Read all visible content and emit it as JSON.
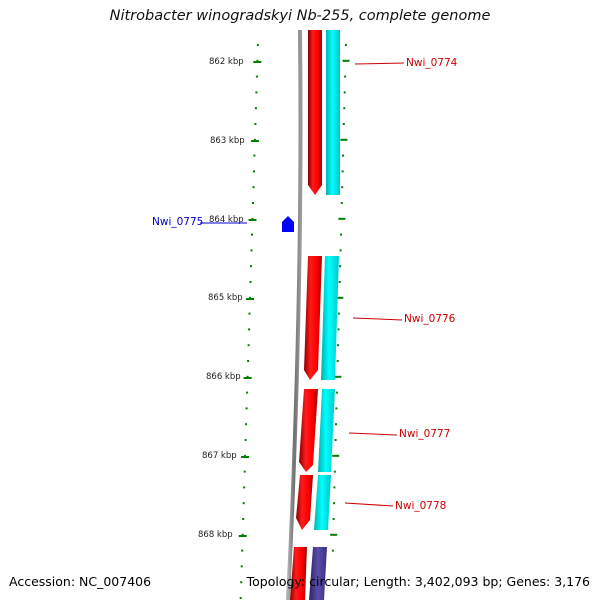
{
  "header": {
    "title": "Nitrobacter winogradskyi Nb-255, complete genome"
  },
  "footer": {
    "accession": "Accession: NC_007406",
    "summary": "Topology: circular; Length: 3,402,093 bp; Genes: 3,176"
  },
  "scale": {
    "ticks": [
      "862 kbp",
      "863 kbp",
      "864 kbp",
      "865 kbp",
      "866 kbp",
      "867 kbp",
      "868 kbp"
    ]
  },
  "genes": [
    {
      "id": "Nwi_0774",
      "strand": "forward",
      "color": "#cc0000"
    },
    {
      "id": "Nwi_0775",
      "strand": "reverse",
      "color": "#0000cc"
    },
    {
      "id": "Nwi_0776",
      "strand": "forward",
      "color": "#cc0000"
    },
    {
      "id": "Nwi_0777",
      "strand": "forward",
      "color": "#cc0000"
    },
    {
      "id": "Nwi_0778",
      "strand": "forward",
      "color": "#cc0000"
    }
  ],
  "colors": {
    "cds_forward": "#ff0000",
    "cds_reverse": "#0000ff",
    "gene_track": "#00ffff",
    "backbone": "#808080",
    "ticks": "#008000",
    "extra_feature": "#4b3d8f"
  }
}
